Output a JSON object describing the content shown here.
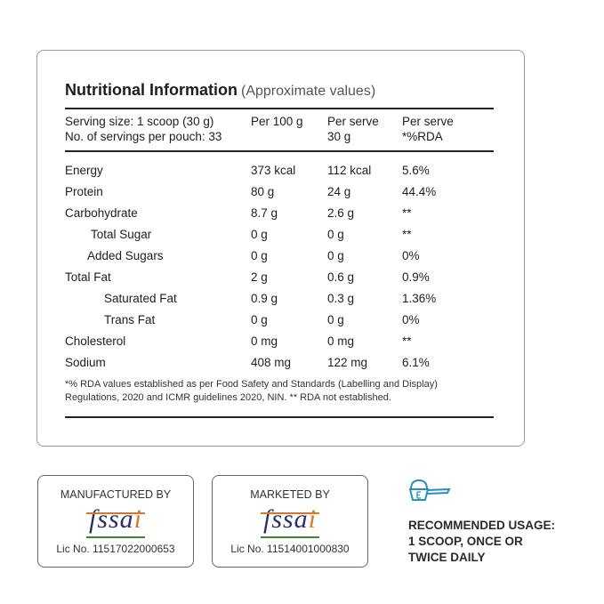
{
  "title": {
    "main": "Nutritional Information",
    "sub": "(Approximate values)"
  },
  "header": {
    "serving_size": "Serving size: 1 scoop (30 g)",
    "servings": "No. of servings per pouch: 33",
    "col1": "Per 100 g",
    "col2_line1": "Per serve",
    "col2_line2": "30 g",
    "col3_line1": "Per serve",
    "col3_line2": "*%RDA"
  },
  "rows": [
    {
      "name": "Energy",
      "per100": "373 kcal",
      "perserve": "112 kcal",
      "rda": "5.6%"
    },
    {
      "name": "Protein",
      "per100": "80 g",
      "perserve": "24 g",
      "rda": "44.4%"
    },
    {
      "name": "Carbohydrate",
      "per100": "8.7 g",
      "perserve": "2.6 g",
      "rda": "**"
    },
    {
      "name": "Total Sugar",
      "per100": "0 g",
      "perserve": "0 g",
      "rda": "**"
    },
    {
      "name": "Added Sugars",
      "per100": "0 g",
      "perserve": "0 g",
      "rda": "0%"
    },
    {
      "name": "Total Fat",
      "per100": "2 g",
      "perserve": "0.6 g",
      "rda": "0.9%"
    },
    {
      "name": "Saturated Fat",
      "per100": "0.9 g",
      "perserve": "0.3 g",
      "rda": "1.36%"
    },
    {
      "name": "Trans Fat",
      "per100": "0 g",
      "perserve": "0 g",
      "rda": "0%"
    },
    {
      "name": "Cholesterol",
      "per100": "0 mg",
      "perserve": "0 mg",
      "rda": "**"
    },
    {
      "name": "Sodium",
      "per100": "408 mg",
      "perserve": "122 mg",
      "rda": "6.1%"
    }
  ],
  "footnote": {
    "line1": "*% RDA values established as per Food Safety and Standards (Labelling and Display)",
    "line2": "Regulations, 2020 and ICMR guidelines 2020, NIN. ** RDA not established."
  },
  "manufactured": {
    "caption": "MANUFACTURED BY",
    "logo": "fssai",
    "license": "Lic No. 11517022000653"
  },
  "marketed": {
    "caption": "MARKETED BY",
    "logo": "fssai",
    "license": "Lic No. 11514001000830"
  },
  "usage": {
    "icon": "scoop-icon",
    "line1": "RECOMMENDED USAGE:",
    "line2": "1 SCOOP, ONCE OR",
    "line3": "TWICE DAILY"
  },
  "colors": {
    "fssai_blue": "#2a2f6b",
    "fssai_orange": "#d8762a",
    "fssai_green": "#3a8a2a",
    "scoop_blue": "#2b8fc4"
  }
}
